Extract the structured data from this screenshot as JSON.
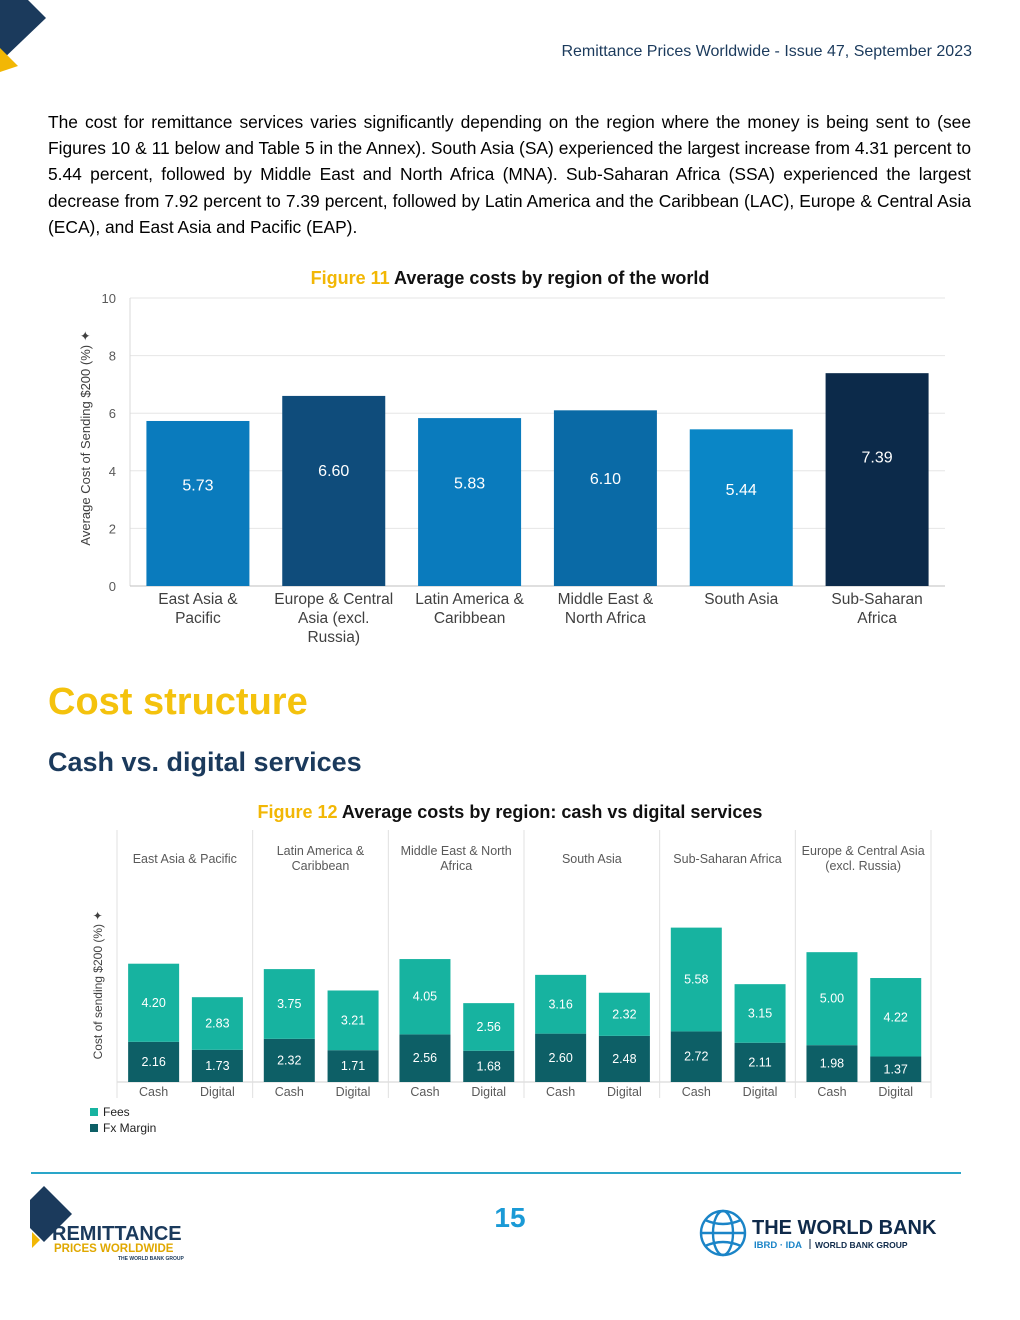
{
  "header": {
    "title": "Remittance Prices Worldwide - Issue 47, September 2023"
  },
  "intro_paragraph": "The cost for remittance services varies significantly depending on the region where the money is being sent to (see Figures 10 & 11 below and Table 5 in the Annex). South Asia (SA) experienced the largest increase from 4.31 percent to 5.44 percent, followed by Middle East and North Africa (MNA). Sub-Saharan Africa (SSA) experienced the largest decrease from 7.92 percent to 7.39 percent, followed by Latin America and the Caribbean (LAC), Europe & Central Asia (ECA), and East Asia and Pacific (EAP).",
  "figure11": {
    "number": "Figure 11",
    "title": "Average costs by region of the world"
  },
  "section_title": "Cost structure",
  "subsection_title": "Cash vs. digital services",
  "figure12": {
    "number": "Figure 12",
    "title": "Average costs by region: cash vs digital services"
  },
  "footer": {
    "page_number": "15",
    "left_logo": {
      "line1": "REMITTANCE",
      "line2": "PRICES WORLDWIDE",
      "line3": "THE WORLD BANK GROUP"
    },
    "right_logo": {
      "name": "THE WORLD BANK",
      "sub1": "IBRD · IDA",
      "sub2": "WORLD BANK GROUP"
    }
  },
  "colors": {
    "fees": "#17b3a0",
    "fx": "#0d5f66",
    "accent_yellow": "#f4c20d",
    "navy": "#1b3a5c"
  },
  "chart_data": [
    {
      "type": "bar",
      "title": "Average costs by region of the world",
      "ylabel": "Average Cost of Sending $200 (%) ✦",
      "ylim": [
        0,
        10
      ],
      "yticks": [
        0,
        2,
        4,
        6,
        8,
        10
      ],
      "grid": true,
      "categories": [
        [
          "East Asia &",
          "Pacific"
        ],
        [
          "Europe & Central",
          "Asia (excl.",
          "Russia)"
        ],
        [
          "Latin America &",
          "Caribbean"
        ],
        [
          "Middle East &",
          "North Africa"
        ],
        [
          "South Asia"
        ],
        [
          "Sub-Saharan",
          "Africa"
        ]
      ],
      "values": [
        5.73,
        6.6,
        5.83,
        6.1,
        5.44,
        7.39
      ],
      "value_labels": [
        "5.73",
        "6.60",
        "5.83",
        "6.10",
        "5.44",
        "7.39"
      ],
      "bar_colors": [
        "#0a7bbd",
        "#0f4c7b",
        "#0a7bbd",
        "#0a6aa6",
        "#0a86c6",
        "#0c2a4a"
      ]
    },
    {
      "type": "bar",
      "stacked": true,
      "title": "Average costs by region: cash vs digital services",
      "ylabel": "Cost of sending $200 (%) ✦",
      "ylim": [
        0,
        10
      ],
      "legend": [
        "Fees",
        "Fx Margin"
      ],
      "legend_position": "bottom-left",
      "regions": [
        {
          "name": [
            "East Asia & Pacific"
          ],
          "bars": [
            {
              "label": "Cash",
              "fx": 2.16,
              "fees": 4.2
            },
            {
              "label": "Digital",
              "fx": 1.73,
              "fees": 2.83
            }
          ]
        },
        {
          "name": [
            "Latin America &",
            "Caribbean"
          ],
          "bars": [
            {
              "label": "Cash",
              "fx": 2.32,
              "fees": 3.75
            },
            {
              "label": "Digital",
              "fx": 1.71,
              "fees": 3.21
            }
          ]
        },
        {
          "name": [
            "Middle East & North",
            "Africa"
          ],
          "bars": [
            {
              "label": "Cash",
              "fx": 2.56,
              "fees": 4.05
            },
            {
              "label": "Digital",
              "fx": 1.68,
              "fees": 2.56
            }
          ]
        },
        {
          "name": [
            "South Asia"
          ],
          "bars": [
            {
              "label": "Cash",
              "fx": 2.6,
              "fees": 3.16
            },
            {
              "label": "Digital",
              "fx": 2.48,
              "fees": 2.32
            }
          ]
        },
        {
          "name": [
            "Sub-Saharan Africa"
          ],
          "bars": [
            {
              "label": "Cash",
              "fx": 2.72,
              "fees": 5.58
            },
            {
              "label": "Digital",
              "fx": 2.11,
              "fees": 3.15
            }
          ]
        },
        {
          "name": [
            "Europe & Central Asia",
            "(excl. Russia)"
          ],
          "bars": [
            {
              "label": "Cash",
              "fx": 1.98,
              "fees": 5.0
            },
            {
              "label": "Digital",
              "fx": 1.37,
              "fees": 4.22
            }
          ]
        }
      ]
    }
  ]
}
